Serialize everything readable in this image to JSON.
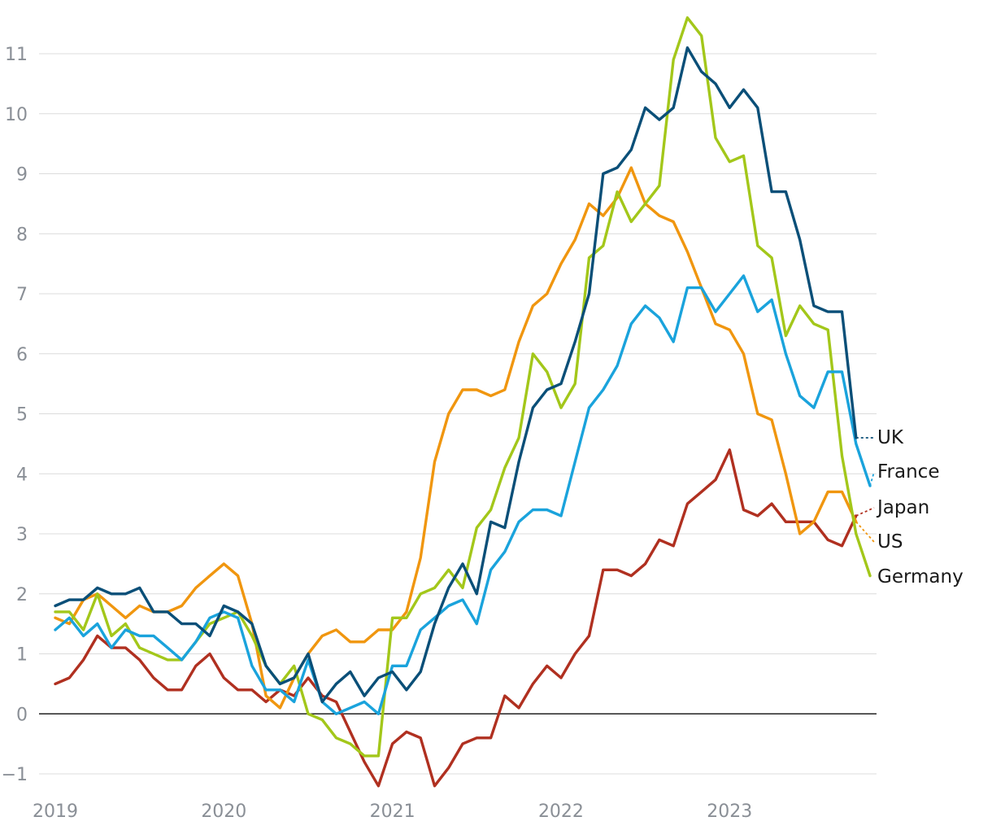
{
  "chart_data": {
    "type": "line",
    "ylim": [
      -1.3,
      11.8
    ],
    "yticks": [
      -1,
      0,
      1,
      2,
      3,
      4,
      5,
      6,
      7,
      8,
      9,
      10,
      11
    ],
    "ytick_labels": [
      "−1",
      "0",
      "1",
      "2",
      "3",
      "4",
      "5",
      "6",
      "7",
      "8",
      "9",
      "10",
      "11"
    ],
    "xlim": [
      2019.0,
      2023.92
    ],
    "xticks": [
      2019,
      2020,
      2021,
      2022,
      2023
    ],
    "xtick_labels": [
      "2019",
      "2020",
      "2021",
      "2022",
      "2023"
    ],
    "grid": true,
    "legend_placement": "right, at line ends",
    "series": [
      {
        "name": "Japan",
        "color": "#b03020",
        "x_start": 2019.0,
        "values": [
          0.5,
          0.6,
          0.9,
          1.3,
          1.1,
          1.1,
          0.9,
          0.6,
          0.4,
          0.4,
          0.8,
          1.0,
          0.6,
          0.4,
          0.4,
          0.2,
          0.4,
          0.3,
          0.6,
          0.3,
          0.2,
          -0.3,
          -0.8,
          -1.2,
          -0.5,
          -0.3,
          -0.4,
          -1.2,
          -0.9,
          -0.5,
          -0.4,
          -0.4,
          0.3,
          0.1,
          0.5,
          0.8,
          0.6,
          1.0,
          1.3,
          2.4,
          2.4,
          2.3,
          2.5,
          2.9,
          2.8,
          3.5,
          3.7,
          3.9,
          4.4,
          3.4,
          3.3,
          3.5,
          3.2,
          3.2,
          3.2,
          2.9,
          2.8,
          3.3
        ]
      },
      {
        "name": "US",
        "color": "#f0960f",
        "x_start": 2019.0,
        "values": [
          1.6,
          1.5,
          1.9,
          2.0,
          1.8,
          1.6,
          1.8,
          1.7,
          1.7,
          1.8,
          2.1,
          2.3,
          2.5,
          2.3,
          1.5,
          0.3,
          0.1,
          0.6,
          1.0,
          1.3,
          1.4,
          1.2,
          1.2,
          1.4,
          1.4,
          1.7,
          2.6,
          4.2,
          5.0,
          5.4,
          5.4,
          5.3,
          5.4,
          6.2,
          6.8,
          7.0,
          7.5,
          7.9,
          8.5,
          8.3,
          8.6,
          9.1,
          8.5,
          8.3,
          8.2,
          7.7,
          7.1,
          6.5,
          6.4,
          6.0,
          5.0,
          4.9,
          4.0,
          3.0,
          3.2,
          3.7,
          3.7,
          3.2
        ]
      },
      {
        "name": "Germany",
        "color": "#a3c71a",
        "x_start": 2019.0,
        "values": [
          1.7,
          1.7,
          1.4,
          2.0,
          1.3,
          1.5,
          1.1,
          1.0,
          0.9,
          0.9,
          1.2,
          1.5,
          1.6,
          1.7,
          1.3,
          0.8,
          0.5,
          0.8,
          0.0,
          -0.1,
          -0.4,
          -0.5,
          -0.7,
          -0.7,
          1.6,
          1.6,
          2.0,
          2.1,
          2.4,
          2.1,
          3.1,
          3.4,
          4.1,
          4.6,
          6.0,
          5.7,
          5.1,
          5.5,
          7.6,
          7.8,
          8.7,
          8.2,
          8.5,
          8.8,
          10.9,
          11.6,
          11.3,
          9.6,
          9.2,
          9.3,
          7.8,
          7.6,
          6.3,
          6.8,
          6.5,
          6.4,
          4.3,
          3.0,
          2.3
        ]
      },
      {
        "name": "France",
        "color": "#1aa3dc",
        "x_start": 2019.0,
        "values": [
          1.4,
          1.6,
          1.3,
          1.5,
          1.1,
          1.4,
          1.3,
          1.3,
          1.1,
          0.9,
          1.2,
          1.6,
          1.7,
          1.6,
          0.8,
          0.4,
          0.4,
          0.2,
          0.9,
          0.2,
          0.0,
          0.1,
          0.2,
          0.0,
          0.8,
          0.8,
          1.4,
          1.6,
          1.8,
          1.9,
          1.5,
          2.4,
          2.7,
          3.2,
          3.4,
          3.4,
          3.3,
          4.2,
          5.1,
          5.4,
          5.8,
          6.5,
          6.8,
          6.6,
          6.2,
          7.1,
          7.1,
          6.7,
          7.0,
          7.3,
          6.7,
          6.9,
          6.0,
          5.3,
          5.1,
          5.7,
          5.7,
          4.5,
          3.8
        ]
      },
      {
        "name": "UK",
        "color": "#0a4f78",
        "x_start": 2019.0,
        "values": [
          1.8,
          1.9,
          1.9,
          2.1,
          2.0,
          2.0,
          2.1,
          1.7,
          1.7,
          1.5,
          1.5,
          1.3,
          1.8,
          1.7,
          1.5,
          0.8,
          0.5,
          0.6,
          1.0,
          0.2,
          0.5,
          0.7,
          0.3,
          0.6,
          0.7,
          0.4,
          0.7,
          1.5,
          2.1,
          2.5,
          2.0,
          3.2,
          3.1,
          4.2,
          5.1,
          5.4,
          5.5,
          6.2,
          7.0,
          9.0,
          9.1,
          9.4,
          10.1,
          9.9,
          10.1,
          11.1,
          10.7,
          10.5,
          10.1,
          10.4,
          10.1,
          8.7,
          8.7,
          7.9,
          6.8,
          6.7,
          6.7,
          4.6
        ]
      }
    ],
    "legend_entries": [
      "UK",
      "France",
      "Japan",
      "US",
      "Germany"
    ]
  }
}
